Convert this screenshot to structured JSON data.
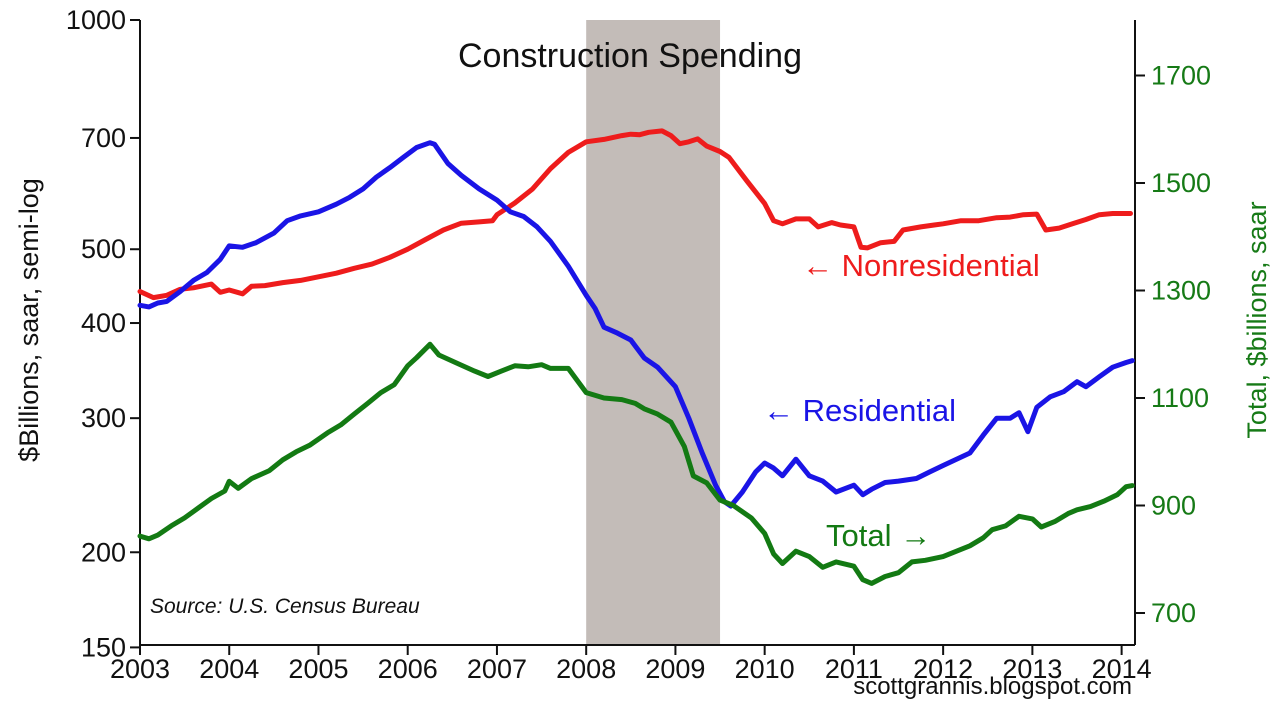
{
  "chart_data": {
    "type": "line",
    "title": "Construction Spending",
    "source": "Source: U.S. Census Bureau",
    "credit": "scottgrannis.blogspot.com",
    "y_left": {
      "label": "$Billions, saar, semi-log",
      "scale": "log",
      "range": [
        150,
        1000
      ],
      "ticks": [
        {
          "value": 150,
          "label": "150"
        },
        {
          "value": 200,
          "label": "200"
        },
        {
          "value": 300,
          "label": "300"
        },
        {
          "value": 400,
          "label": "400"
        },
        {
          "value": 500,
          "label": "500"
        },
        {
          "value": 700,
          "label": "700"
        },
        {
          "value": 1000,
          "label": "1000"
        }
      ]
    },
    "y_right": {
      "label": "Total, $billions, saar",
      "scale": "linear",
      "range": [
        700,
        1800
      ],
      "ticks": [
        {
          "value": 700,
          "label": "700"
        },
        {
          "value": 900,
          "label": "900"
        },
        {
          "value": 1100,
          "label": "1100"
        },
        {
          "value": 1300,
          "label": "1300"
        },
        {
          "value": 1500,
          "label": "1500"
        },
        {
          "value": 1700,
          "label": "1700"
        }
      ]
    },
    "x_axis": {
      "range": [
        2003.0,
        2014.15
      ],
      "ticks": [
        {
          "value": 2003,
          "label": "2003"
        },
        {
          "value": 2004,
          "label": "2004"
        },
        {
          "value": 2005,
          "label": "2005"
        },
        {
          "value": 2006,
          "label": "2006"
        },
        {
          "value": 2007,
          "label": "2007"
        },
        {
          "value": 2008,
          "label": "2008"
        },
        {
          "value": 2009,
          "label": "2009"
        },
        {
          "value": 2010,
          "label": "2010"
        },
        {
          "value": 2011,
          "label": "2011"
        },
        {
          "value": 2012,
          "label": "2012"
        },
        {
          "value": 2013,
          "label": "2013"
        },
        {
          "value": 2014,
          "label": "2014"
        }
      ]
    },
    "recession": {
      "start": 2008.0,
      "end": 2009.5,
      "color": "#c3bcb8"
    },
    "grid": false,
    "series": [
      {
        "name": "Nonresidential",
        "axis": "left",
        "color": "#ee1c1c",
        "label": "← Nonresidential",
        "points": [
          [
            2003.0,
            440
          ],
          [
            2003.15,
            432
          ],
          [
            2003.3,
            435
          ],
          [
            2003.45,
            443
          ],
          [
            2003.6,
            445
          ],
          [
            2003.8,
            450
          ],
          [
            2003.9,
            439
          ],
          [
            2004.0,
            442
          ],
          [
            2004.15,
            437
          ],
          [
            2004.25,
            447
          ],
          [
            2004.4,
            448
          ],
          [
            2004.6,
            452
          ],
          [
            2004.8,
            455
          ],
          [
            2005.0,
            460
          ],
          [
            2005.2,
            465
          ],
          [
            2005.4,
            472
          ],
          [
            2005.6,
            478
          ],
          [
            2005.8,
            488
          ],
          [
            2006.0,
            500
          ],
          [
            2006.2,
            515
          ],
          [
            2006.4,
            530
          ],
          [
            2006.6,
            541
          ],
          [
            2006.8,
            543
          ],
          [
            2006.95,
            545
          ],
          [
            2007.0,
            555
          ],
          [
            2007.2,
            575
          ],
          [
            2007.4,
            600
          ],
          [
            2007.6,
            638
          ],
          [
            2007.8,
            670
          ],
          [
            2008.0,
            692
          ],
          [
            2008.2,
            697
          ],
          [
            2008.4,
            705
          ],
          [
            2008.5,
            708
          ],
          [
            2008.6,
            707
          ],
          [
            2008.7,
            712
          ],
          [
            2008.85,
            715
          ],
          [
            2008.95,
            705
          ],
          [
            2009.05,
            688
          ],
          [
            2009.15,
            692
          ],
          [
            2009.25,
            698
          ],
          [
            2009.35,
            683
          ],
          [
            2009.5,
            672
          ],
          [
            2009.6,
            660
          ],
          [
            2009.8,
            615
          ],
          [
            2010.0,
            574
          ],
          [
            2010.1,
            545
          ],
          [
            2010.2,
            540
          ],
          [
            2010.35,
            548
          ],
          [
            2010.5,
            548
          ],
          [
            2010.6,
            535
          ],
          [
            2010.75,
            542
          ],
          [
            2010.85,
            538
          ],
          [
            2011.0,
            535
          ],
          [
            2011.08,
            503
          ],
          [
            2011.15,
            502
          ],
          [
            2011.3,
            510
          ],
          [
            2011.45,
            512
          ],
          [
            2011.55,
            530
          ],
          [
            2011.75,
            535
          ],
          [
            2011.9,
            538
          ],
          [
            2012.0,
            540
          ],
          [
            2012.2,
            545
          ],
          [
            2012.4,
            545
          ],
          [
            2012.6,
            550
          ],
          [
            2012.75,
            551
          ],
          [
            2012.9,
            555
          ],
          [
            2013.05,
            556
          ],
          [
            2013.15,
            530
          ],
          [
            2013.3,
            533
          ],
          [
            2013.45,
            540
          ],
          [
            2013.6,
            547
          ],
          [
            2013.75,
            555
          ],
          [
            2013.9,
            557
          ],
          [
            2014.1,
            557
          ]
        ]
      },
      {
        "name": "Residential",
        "axis": "left",
        "color": "#1a14e6",
        "label": "← Residential",
        "points": [
          [
            2003.0,
            422
          ],
          [
            2003.1,
            420
          ],
          [
            2003.2,
            425
          ],
          [
            2003.3,
            427
          ],
          [
            2003.45,
            440
          ],
          [
            2003.6,
            455
          ],
          [
            2003.75,
            466
          ],
          [
            2003.9,
            485
          ],
          [
            2004.0,
            505
          ],
          [
            2004.15,
            503
          ],
          [
            2004.3,
            510
          ],
          [
            2004.5,
            525
          ],
          [
            2004.65,
            545
          ],
          [
            2004.8,
            553
          ],
          [
            2005.0,
            560
          ],
          [
            2005.2,
            573
          ],
          [
            2005.35,
            585
          ],
          [
            2005.5,
            600
          ],
          [
            2005.65,
            622
          ],
          [
            2005.8,
            640
          ],
          [
            2005.95,
            660
          ],
          [
            2006.1,
            680
          ],
          [
            2006.25,
            690
          ],
          [
            2006.3,
            687
          ],
          [
            2006.45,
            648
          ],
          [
            2006.6,
            625
          ],
          [
            2006.8,
            600
          ],
          [
            2007.0,
            580
          ],
          [
            2007.15,
            560
          ],
          [
            2007.3,
            552
          ],
          [
            2007.45,
            535
          ],
          [
            2007.6,
            512
          ],
          [
            2007.8,
            475
          ],
          [
            2008.0,
            435
          ],
          [
            2008.1,
            418
          ],
          [
            2008.2,
            395
          ],
          [
            2008.35,
            388
          ],
          [
            2008.5,
            380
          ],
          [
            2008.65,
            360
          ],
          [
            2008.8,
            350
          ],
          [
            2009.0,
            330
          ],
          [
            2009.15,
            300
          ],
          [
            2009.3,
            270
          ],
          [
            2009.45,
            245
          ],
          [
            2009.55,
            233
          ],
          [
            2009.62,
            230
          ],
          [
            2009.75,
            240
          ],
          [
            2009.9,
            255
          ],
          [
            2010.0,
            262
          ],
          [
            2010.1,
            258
          ],
          [
            2010.2,
            252
          ],
          [
            2010.35,
            265
          ],
          [
            2010.5,
            252
          ],
          [
            2010.65,
            248
          ],
          [
            2010.8,
            240
          ],
          [
            2011.0,
            245
          ],
          [
            2011.1,
            238
          ],
          [
            2011.2,
            242
          ],
          [
            2011.35,
            247
          ],
          [
            2011.5,
            248
          ],
          [
            2011.7,
            250
          ],
          [
            2011.85,
            255
          ],
          [
            2012.0,
            260
          ],
          [
            2012.15,
            265
          ],
          [
            2012.3,
            270
          ],
          [
            2012.45,
            285
          ],
          [
            2012.6,
            300
          ],
          [
            2012.75,
            300
          ],
          [
            2012.85,
            305
          ],
          [
            2012.95,
            288
          ],
          [
            2013.05,
            310
          ],
          [
            2013.2,
            320
          ],
          [
            2013.35,
            325
          ],
          [
            2013.5,
            335
          ],
          [
            2013.6,
            330
          ],
          [
            2013.75,
            340
          ],
          [
            2013.9,
            350
          ],
          [
            2014.05,
            355
          ],
          [
            2014.12,
            357
          ]
        ]
      },
      {
        "name": "Total",
        "axis": "right",
        "color": "#137a13",
        "label": "Total →",
        "points": [
          [
            2003.0,
            843
          ],
          [
            2003.1,
            838
          ],
          [
            2003.2,
            845
          ],
          [
            2003.35,
            862
          ],
          [
            2003.5,
            877
          ],
          [
            2003.65,
            895
          ],
          [
            2003.8,
            913
          ],
          [
            2003.95,
            927
          ],
          [
            2004.0,
            945
          ],
          [
            2004.1,
            932
          ],
          [
            2004.25,
            950
          ],
          [
            2004.45,
            965
          ],
          [
            2004.6,
            985
          ],
          [
            2004.75,
            1000
          ],
          [
            2004.9,
            1012
          ],
          [
            2005.1,
            1035
          ],
          [
            2005.25,
            1050
          ],
          [
            2005.4,
            1070
          ],
          [
            2005.55,
            1090
          ],
          [
            2005.7,
            1110
          ],
          [
            2005.85,
            1125
          ],
          [
            2006.0,
            1160
          ],
          [
            2006.1,
            1175
          ],
          [
            2006.25,
            1200
          ],
          [
            2006.35,
            1180
          ],
          [
            2006.55,
            1165
          ],
          [
            2006.75,
            1150
          ],
          [
            2006.9,
            1140
          ],
          [
            2007.05,
            1150
          ],
          [
            2007.2,
            1160
          ],
          [
            2007.35,
            1158
          ],
          [
            2007.5,
            1162
          ],
          [
            2007.6,
            1155
          ],
          [
            2007.8,
            1155
          ],
          [
            2008.0,
            1110
          ],
          [
            2008.2,
            1100
          ],
          [
            2008.4,
            1097
          ],
          [
            2008.55,
            1090
          ],
          [
            2008.65,
            1080
          ],
          [
            2008.8,
            1070
          ],
          [
            2008.95,
            1055
          ],
          [
            2009.1,
            1010
          ],
          [
            2009.2,
            955
          ],
          [
            2009.35,
            942
          ],
          [
            2009.5,
            910
          ],
          [
            2009.65,
            900
          ],
          [
            2009.85,
            877
          ],
          [
            2010.0,
            848
          ],
          [
            2010.1,
            810
          ],
          [
            2010.2,
            792
          ],
          [
            2010.35,
            815
          ],
          [
            2010.5,
            805
          ],
          [
            2010.65,
            785
          ],
          [
            2010.8,
            795
          ],
          [
            2011.0,
            787
          ],
          [
            2011.1,
            762
          ],
          [
            2011.2,
            755
          ],
          [
            2011.35,
            768
          ],
          [
            2011.5,
            775
          ],
          [
            2011.65,
            795
          ],
          [
            2011.8,
            798
          ],
          [
            2012.0,
            805
          ],
          [
            2012.15,
            815
          ],
          [
            2012.3,
            825
          ],
          [
            2012.45,
            840
          ],
          [
            2012.55,
            855
          ],
          [
            2012.7,
            862
          ],
          [
            2012.85,
            880
          ],
          [
            2013.0,
            875
          ],
          [
            2013.1,
            860
          ],
          [
            2013.25,
            870
          ],
          [
            2013.4,
            885
          ],
          [
            2013.5,
            892
          ],
          [
            2013.65,
            898
          ],
          [
            2013.8,
            908
          ],
          [
            2013.95,
            920
          ],
          [
            2014.05,
            935
          ],
          [
            2014.12,
            937
          ]
        ]
      }
    ]
  }
}
